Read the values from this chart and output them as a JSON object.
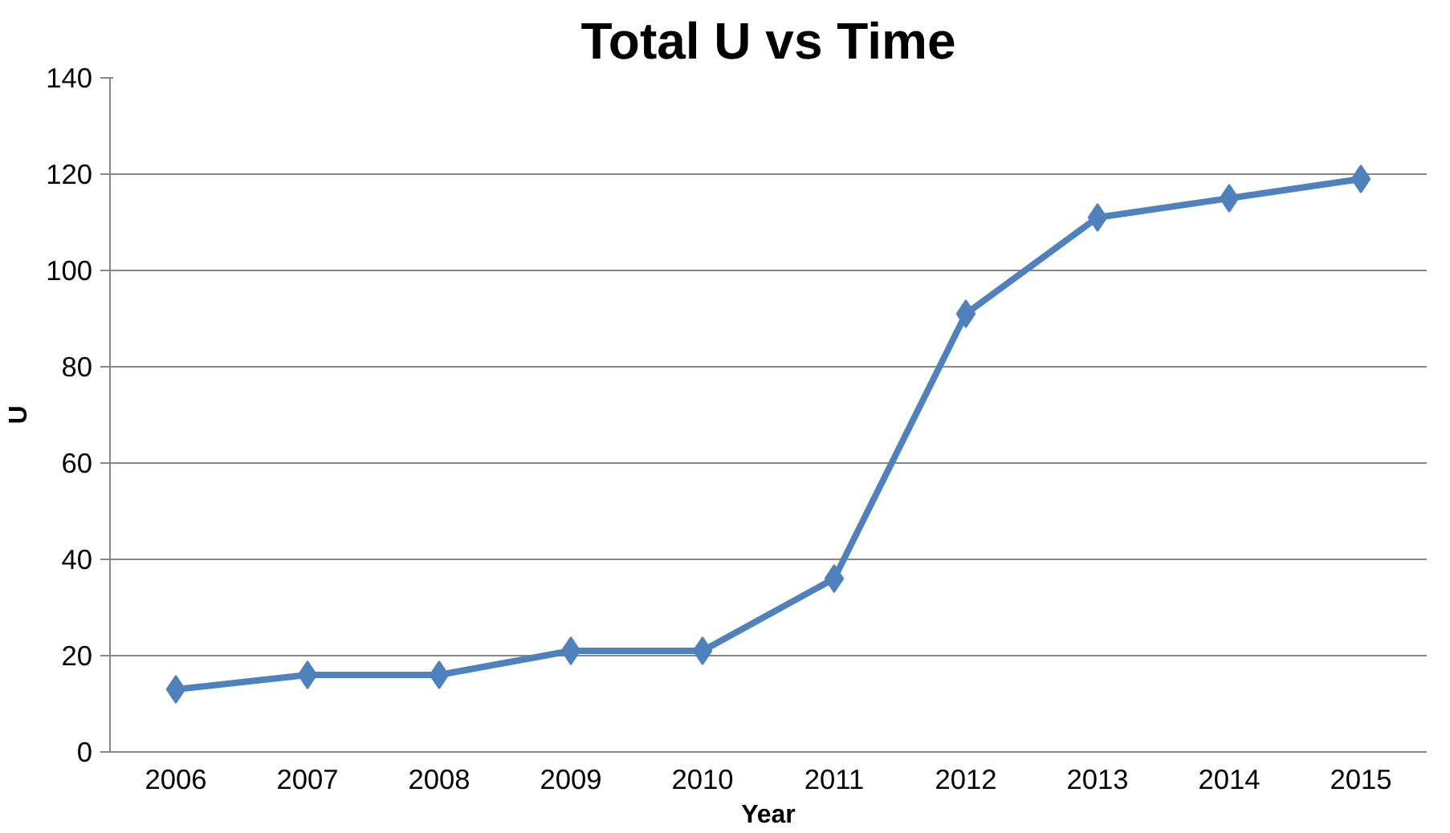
{
  "chart_data": {
    "type": "line",
    "title": "Total U vs Time",
    "xlabel": "Year",
    "ylabel": "U",
    "categories": [
      "2006",
      "2007",
      "2008",
      "2009",
      "2010",
      "2011",
      "2012",
      "2013",
      "2014",
      "2015"
    ],
    "series": [
      {
        "color": "#4f81bd",
        "values": [
          13,
          16,
          16,
          21,
          21,
          36,
          91,
          111,
          115,
          119
        ]
      }
    ],
    "ylim": [
      0,
      140
    ],
    "yticks": [
      0,
      20,
      40,
      60,
      80,
      100,
      120,
      140
    ],
    "grid": "y",
    "marker": "diamond",
    "line_style": "solid"
  }
}
